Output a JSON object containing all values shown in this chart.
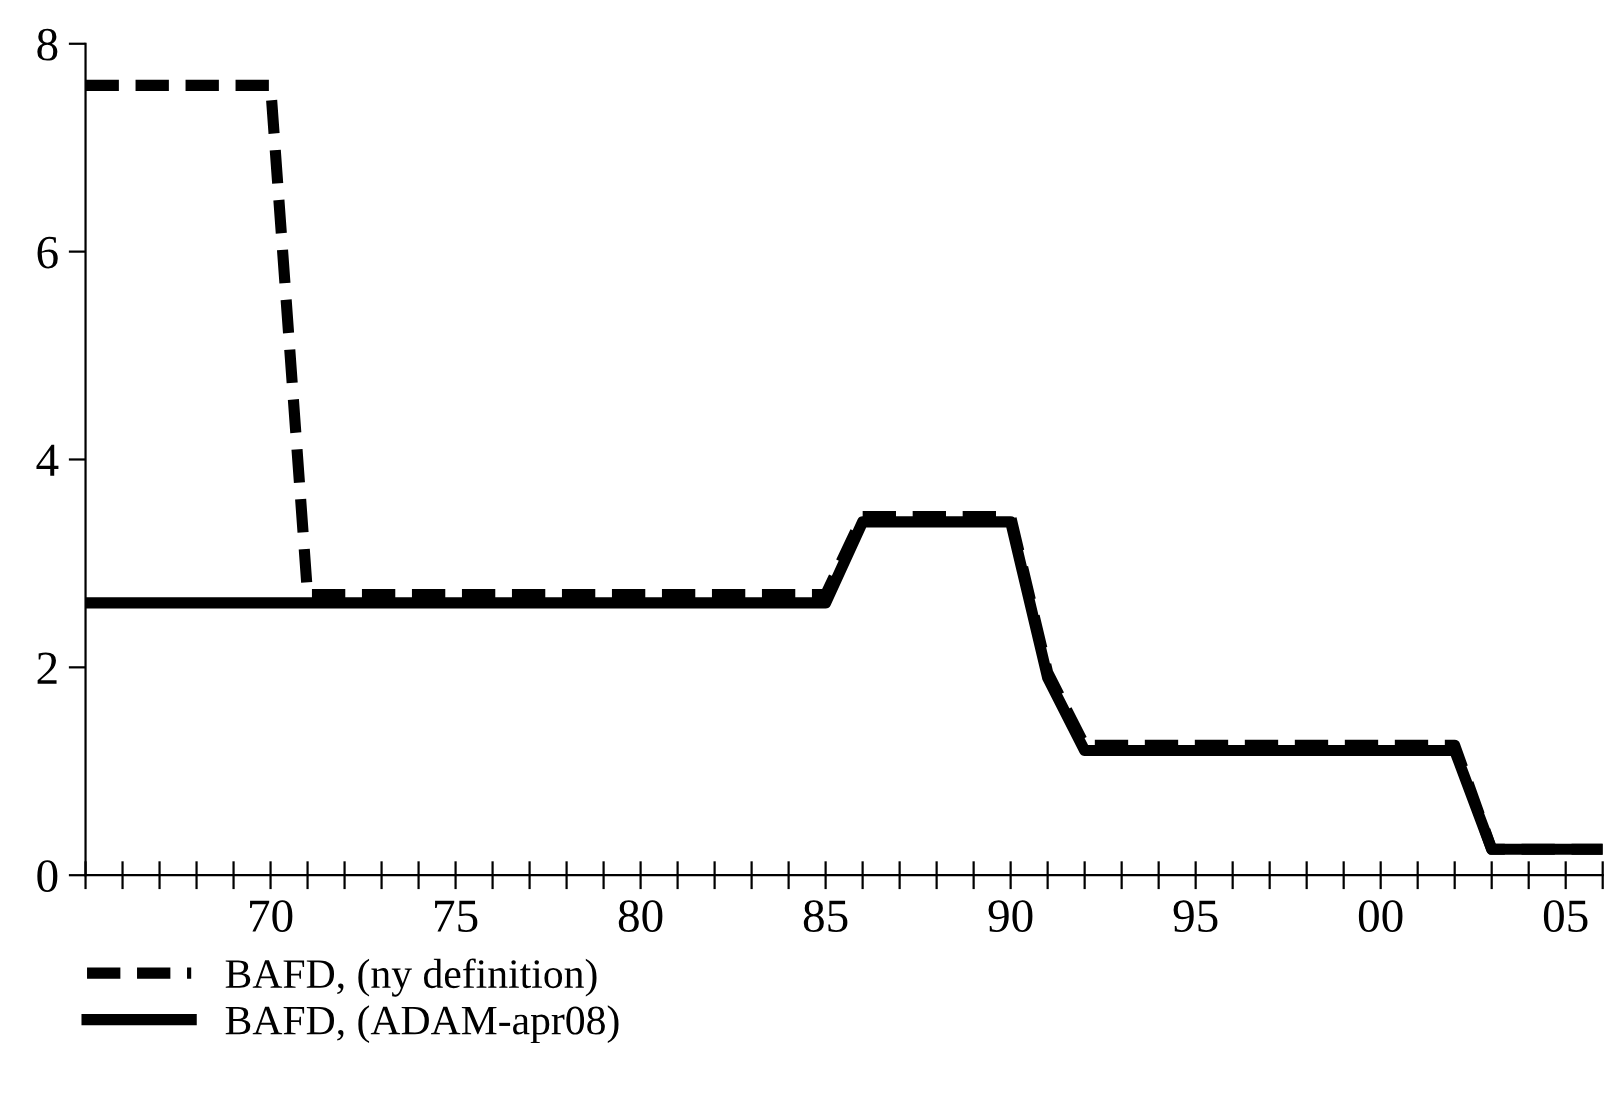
{
  "chart_data": {
    "type": "line",
    "x": [
      1965,
      1966,
      1967,
      1968,
      1969,
      1970,
      1971,
      1972,
      1973,
      1974,
      1975,
      1976,
      1977,
      1978,
      1979,
      1980,
      1981,
      1982,
      1983,
      1984,
      1985,
      1986,
      1987,
      1988,
      1989,
      1990,
      1991,
      1992,
      1993,
      1994,
      1995,
      1996,
      1997,
      1998,
      1999,
      2000,
      2001,
      2002,
      2003,
      2004,
      2005,
      2006
    ],
    "series": [
      {
        "name": "BAFD, (ny definition)",
        "color": "#000000",
        "line_style": "dashed",
        "values": [
          7.6,
          7.6,
          7.6,
          7.6,
          7.6,
          7.6,
          2.7,
          2.7,
          2.7,
          2.7,
          2.7,
          2.7,
          2.7,
          2.7,
          2.7,
          2.7,
          2.7,
          2.7,
          2.7,
          2.7,
          2.7,
          3.45,
          3.45,
          3.45,
          3.45,
          3.45,
          1.95,
          1.25,
          1.25,
          1.25,
          1.25,
          1.25,
          1.25,
          1.25,
          1.25,
          1.25,
          1.25,
          1.25,
          0.25,
          0.25,
          0.25,
          0.25
        ]
      },
      {
        "name": "BAFD, (ADAM-apr08)",
        "color": "#000000",
        "line_style": "solid",
        "values": [
          2.62,
          2.62,
          2.62,
          2.62,
          2.62,
          2.62,
          2.62,
          2.62,
          2.62,
          2.62,
          2.62,
          2.62,
          2.62,
          2.62,
          2.62,
          2.62,
          2.62,
          2.62,
          2.62,
          2.62,
          2.62,
          3.4,
          3.4,
          3.4,
          3.4,
          3.4,
          1.9,
          1.2,
          1.2,
          1.2,
          1.2,
          1.2,
          1.2,
          1.2,
          1.2,
          1.2,
          1.2,
          1.2,
          0.25,
          0.25,
          0.25,
          0.25
        ]
      }
    ],
    "xlim": [
      1965,
      2006
    ],
    "xticks": [
      {
        "value": 1965,
        "label": null
      },
      {
        "value": 1966,
        "label": null
      },
      {
        "value": 1967,
        "label": null
      },
      {
        "value": 1968,
        "label": null
      },
      {
        "value": 1969,
        "label": null
      },
      {
        "value": 1970,
        "label": "70"
      },
      {
        "value": 1971,
        "label": null
      },
      {
        "value": 1972,
        "label": null
      },
      {
        "value": 1973,
        "label": null
      },
      {
        "value": 1974,
        "label": null
      },
      {
        "value": 1975,
        "label": "75"
      },
      {
        "value": 1976,
        "label": null
      },
      {
        "value": 1977,
        "label": null
      },
      {
        "value": 1978,
        "label": null
      },
      {
        "value": 1979,
        "label": null
      },
      {
        "value": 1980,
        "label": "80"
      },
      {
        "value": 1981,
        "label": null
      },
      {
        "value": 1982,
        "label": null
      },
      {
        "value": 1983,
        "label": null
      },
      {
        "value": 1984,
        "label": null
      },
      {
        "value": 1985,
        "label": "85"
      },
      {
        "value": 1986,
        "label": null
      },
      {
        "value": 1987,
        "label": null
      },
      {
        "value": 1988,
        "label": null
      },
      {
        "value": 1989,
        "label": null
      },
      {
        "value": 1990,
        "label": "90"
      },
      {
        "value": 1991,
        "label": null
      },
      {
        "value": 1992,
        "label": null
      },
      {
        "value": 1993,
        "label": null
      },
      {
        "value": 1994,
        "label": null
      },
      {
        "value": 1995,
        "label": "95"
      },
      {
        "value": 1996,
        "label": null
      },
      {
        "value": 1997,
        "label": null
      },
      {
        "value": 1998,
        "label": null
      },
      {
        "value": 1999,
        "label": null
      },
      {
        "value": 2000,
        "label": "00"
      },
      {
        "value": 2001,
        "label": null
      },
      {
        "value": 2002,
        "label": null
      },
      {
        "value": 2003,
        "label": null
      },
      {
        "value": 2004,
        "label": null
      },
      {
        "value": 2005,
        "label": "05"
      },
      {
        "value": 2006,
        "label": null
      }
    ],
    "ylim": [
      0,
      8
    ],
    "yticks": [
      0,
      2,
      4,
      6,
      8
    ],
    "grid": false,
    "legend": "bottom left",
    "marker": "none"
  }
}
